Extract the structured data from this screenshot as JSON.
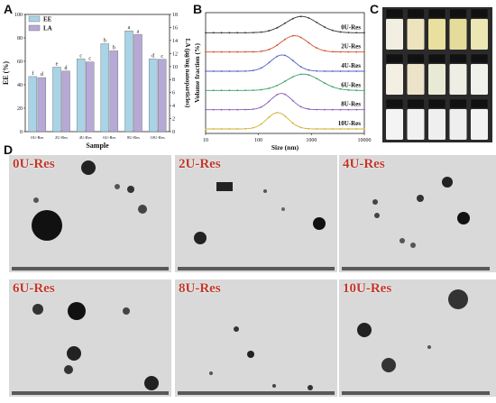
{
  "panels": {
    "a": "A",
    "b": "B",
    "c": "C",
    "d": "D"
  },
  "chart_data": [
    {
      "type": "bar",
      "categories": [
        "0U-Res",
        "2U-Res",
        "4U-Res",
        "6U-Res",
        "8U-Res",
        "10U-Res"
      ],
      "xlabel": "Sample",
      "ylabel": "EE (%)",
      "ylabel_right": "LA (μg/mg nanoparticles)",
      "ylim": [
        0,
        100
      ],
      "ylim_right": [
        0,
        18
      ],
      "yticks": [
        0,
        20,
        40,
        60,
        80,
        100
      ],
      "yticks_right": [
        0,
        2,
        4,
        6,
        8,
        10,
        12,
        14,
        16,
        18
      ],
      "legend": "top-left",
      "series": [
        {
          "name": "EE",
          "values": [
            47,
            55,
            62,
            75,
            86,
            62
          ],
          "color": "#a9d3e6",
          "letters": [
            "f",
            "e",
            "c",
            "b",
            "a",
            "d"
          ]
        },
        {
          "name": "LA",
          "values": [
            8.3,
            9.3,
            10.7,
            12.4,
            14.9,
            11.1
          ],
          "color": "#b7a9d6",
          "letters": [
            "d",
            "d",
            "c",
            "b",
            "a",
            "c"
          ]
        }
      ]
    },
    {
      "type": "line",
      "xlabel": "Size (nm)",
      "ylabel": "Volume fraction (%)",
      "x_scale": "log",
      "xlim": [
        10,
        10000
      ],
      "xticks": [
        10,
        100,
        1000,
        10000
      ],
      "series": [
        {
          "name": "0U-Res",
          "color": "#333333",
          "peak": 650,
          "width": 0.3
        },
        {
          "name": "2U-Res",
          "color": "#d0502e",
          "peak": 480,
          "width": 0.25
        },
        {
          "name": "4U-Res",
          "color": "#4f62c0",
          "peak": 280,
          "width": 0.22
        },
        {
          "name": "6U-Res",
          "color": "#3aa06a",
          "peak": 700,
          "width": 0.32
        },
        {
          "name": "8U-Res",
          "color": "#8b59b5",
          "peak": 270,
          "width": 0.2
        },
        {
          "name": "10U-Res",
          "color": "#d2b030",
          "peak": 230,
          "width": 0.2
        }
      ]
    }
  ],
  "tem_tiles": [
    {
      "label": "0U-Res"
    },
    {
      "label": "2U-Res"
    },
    {
      "label": "4U-Res"
    },
    {
      "label": "6U-Res"
    },
    {
      "label": "8U-Res"
    },
    {
      "label": "10U-Res"
    }
  ],
  "photo_rows": [
    [
      "#f2efe2",
      "#ede4bd",
      "#e9df9e",
      "#e5dc9b",
      "#ebe6b4"
    ],
    [
      "#f3efe3",
      "#ece3c8",
      "#e9ead6",
      "#eeeee4",
      "#f1f1ec"
    ],
    [
      "#f4f4f4",
      "#f1f1f1",
      "#efefef",
      "#eeeeee",
      "#f2f2f2"
    ]
  ]
}
